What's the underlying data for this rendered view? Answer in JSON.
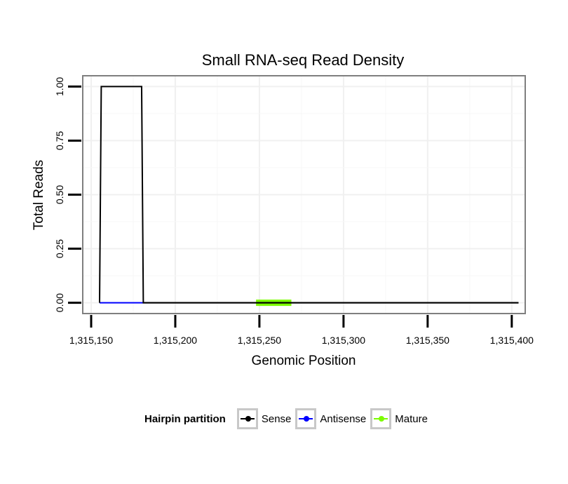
{
  "chart_data": {
    "type": "line",
    "title": "Small RNA-seq Read Density",
    "xlabel": "Genomic Position",
    "ylabel": "Total Reads",
    "xlim": [
      1315145,
      1315408
    ],
    "ylim": [
      -0.05,
      1.05
    ],
    "xticks": [
      1315150,
      1315200,
      1315250,
      1315300,
      1315350,
      1315400
    ],
    "xtick_labels": [
      "1,315,150",
      "1,315,200",
      "1,315,250",
      "1,315,300",
      "1,315,350",
      "1,315,400"
    ],
    "yticks": [
      0,
      0.25,
      0.5,
      0.75,
      1
    ],
    "ytick_labels": [
      "0.00",
      "0.25",
      "0.50",
      "0.75",
      "1.00"
    ],
    "grid": true,
    "series": [
      {
        "name": "Sense",
        "color": "#000000",
        "x": [
          1315155,
          1315156,
          1315180,
          1315181,
          1315404
        ],
        "y": [
          0,
          1,
          1,
          0,
          0
        ]
      },
      {
        "name": "Antisense",
        "color": "#0000ff",
        "x": [
          1315155,
          1315181
        ],
        "y": [
          0,
          0
        ]
      },
      {
        "name": "Mature",
        "color": "#7cfc00",
        "x": [
          1315248,
          1315269
        ],
        "y": [
          0,
          0
        ]
      }
    ]
  },
  "legend": {
    "title": "Hairpin partition",
    "items": [
      {
        "label": "Sense",
        "color": "#000000"
      },
      {
        "label": "Antisense",
        "color": "#0000ff"
      },
      {
        "label": "Mature",
        "color": "#7cfc00"
      }
    ]
  }
}
